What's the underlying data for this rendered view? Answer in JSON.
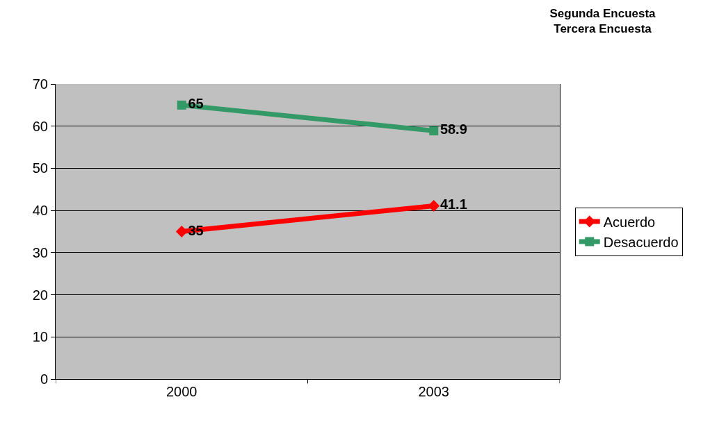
{
  "chart_data": {
    "type": "line",
    "title": "Segunda Encuesta\nTercera Encuesta",
    "categories": [
      "2000",
      "2003"
    ],
    "series": [
      {
        "name": "Acuerdo",
        "color": "#ff0000",
        "values": [
          35,
          41.1
        ],
        "marker": "diamond"
      },
      {
        "name": "Desacuerdo",
        "color": "#339966",
        "values": [
          65,
          58.9
        ],
        "marker": "square"
      }
    ],
    "ylim": [
      0,
      70
    ],
    "yticks": [
      0,
      10,
      20,
      30,
      40,
      50,
      60,
      70
    ],
    "grid": "y",
    "legend": "right",
    "data_labels": true,
    "line_style": "solid"
  }
}
